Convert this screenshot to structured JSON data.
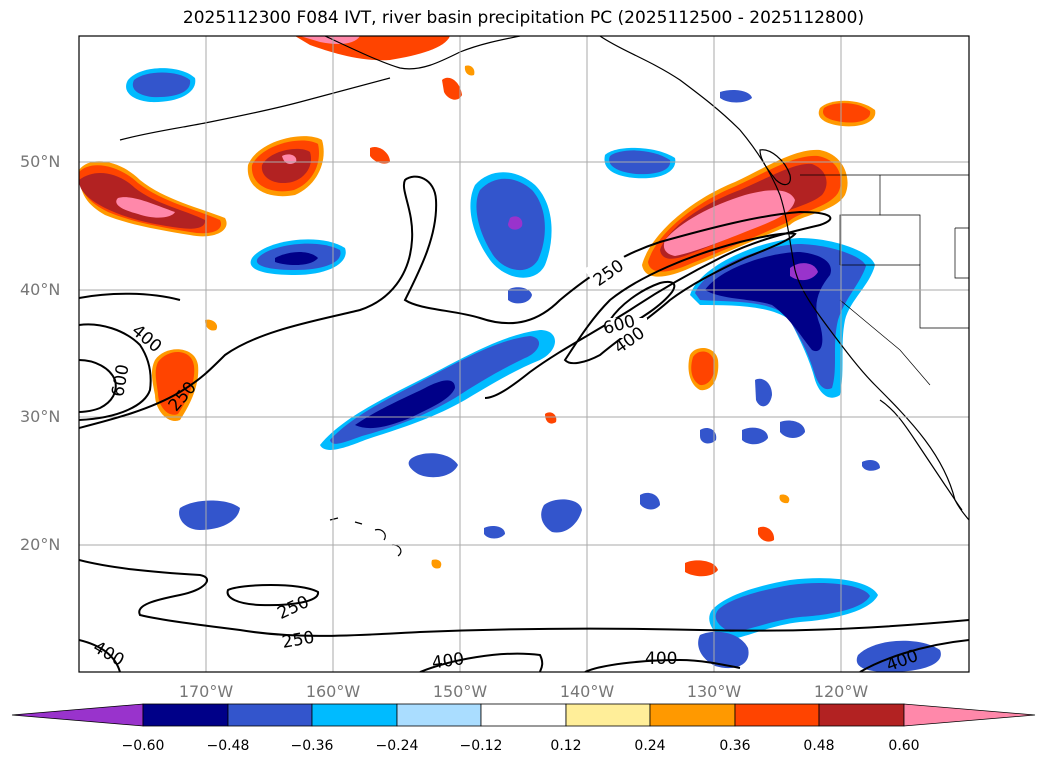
{
  "title": "2025112300 F084 IVT, river basin precipitation PC (2025112500 - 2025112800)",
  "latitude_labels": [
    "50°N",
    "40°N",
    "30°N",
    "20°N"
  ],
  "longitude_labels": [
    "170°W",
    "160°W",
    "150°W",
    "140°W",
    "130°W",
    "120°W"
  ],
  "ivt_contour_labels": [
    "250",
    "400",
    "600",
    "400",
    "250",
    "600",
    "250",
    "250",
    "400",
    "400",
    "400",
    "400"
  ],
  "colorbar": {
    "tick_labels": [
      "−0.60",
      "−0.48",
      "−0.36",
      "−0.24",
      "−0.12",
      "0.12",
      "0.24",
      "0.36",
      "0.48",
      "0.60"
    ],
    "colors": [
      "#9933cc",
      "#000088",
      "#3355cc",
      "#00bbff",
      "#aaddff",
      "#ffffff",
      "#ffee99",
      "#ff9900",
      "#ff4400",
      "#b22222",
      "#ff88aa",
      "#ff88aa"
    ]
  },
  "colors": {
    "purple": "#9933cc",
    "navy": "#000088",
    "blue": "#3355cc",
    "cyan": "#00bbff",
    "lightblue": "#aaddff",
    "yellow": "#ffee99",
    "orange": "#ff9900",
    "redorange": "#ff4400",
    "firebrick": "#b22222",
    "pink": "#ff88aa",
    "grid": "#aaaaaa"
  }
}
